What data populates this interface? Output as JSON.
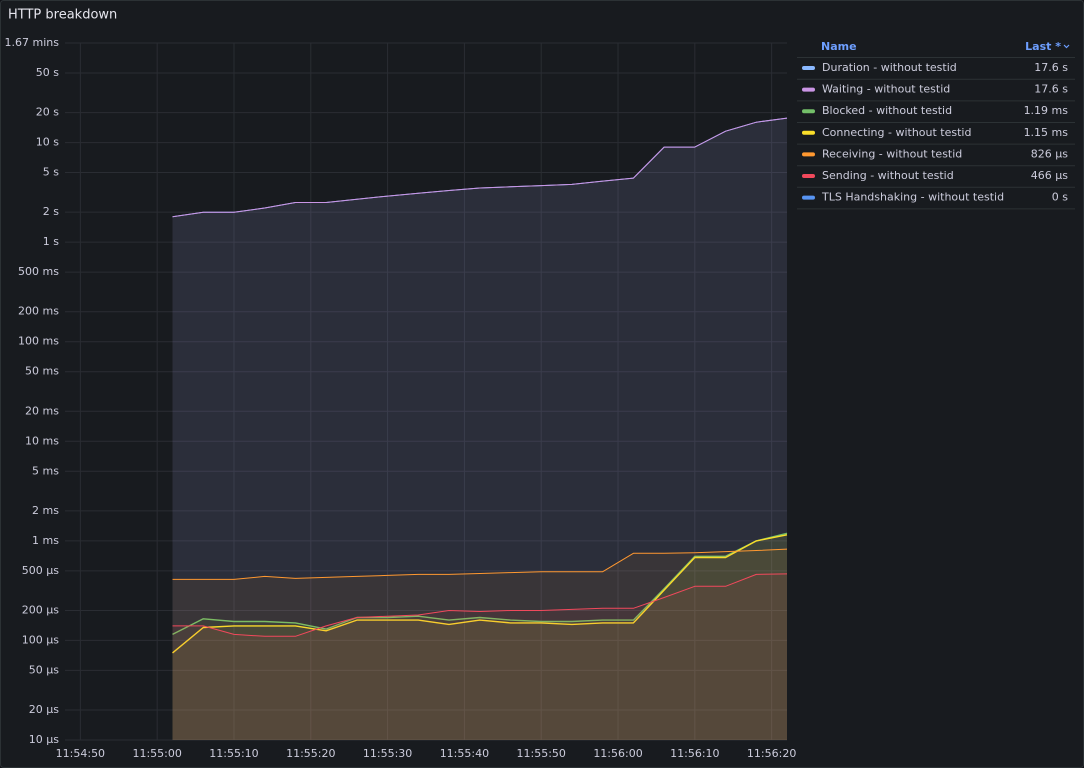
{
  "chart_data": {
    "type": "line",
    "title": "HTTP breakdown",
    "log_scale": true,
    "grid": true,
    "legend": "right",
    "legend_columns": [
      "Name",
      "Last *"
    ],
    "x": [
      "11:55:02",
      "11:55:06",
      "11:55:10",
      "11:55:14",
      "11:55:18",
      "11:55:22",
      "11:55:26",
      "11:55:30",
      "11:55:34",
      "11:55:38",
      "11:55:42",
      "11:55:46",
      "11:55:50",
      "11:55:54",
      "11:55:58",
      "11:56:02",
      "11:56:06",
      "11:56:10",
      "11:56:14",
      "11:56:18",
      "11:56:22"
    ],
    "xlim": [
      "11:54:48",
      "11:56:22"
    ],
    "xticks": [
      "11:54:50",
      "11:55:00",
      "11:55:10",
      "11:55:20",
      "11:55:30",
      "11:55:40",
      "11:55:50",
      "11:56:00",
      "11:56:10",
      "11:56:20"
    ],
    "ylim": [
      1e-05,
      100
    ],
    "yticks": [
      {
        "value": 100,
        "label": "1.67 mins"
      },
      {
        "value": 50,
        "label": "50 s"
      },
      {
        "value": 20,
        "label": "20 s"
      },
      {
        "value": 10,
        "label": "10 s"
      },
      {
        "value": 5,
        "label": "5 s"
      },
      {
        "value": 2,
        "label": "2 s"
      },
      {
        "value": 1,
        "label": "1 s"
      },
      {
        "value": 0.5,
        "label": "500 ms"
      },
      {
        "value": 0.2,
        "label": "200 ms"
      },
      {
        "value": 0.1,
        "label": "100 ms"
      },
      {
        "value": 0.05,
        "label": "50 ms"
      },
      {
        "value": 0.02,
        "label": "20 ms"
      },
      {
        "value": 0.01,
        "label": "10 ms"
      },
      {
        "value": 0.005,
        "label": "5 ms"
      },
      {
        "value": 0.002,
        "label": "2 ms"
      },
      {
        "value": 0.001,
        "label": "1 ms"
      },
      {
        "value": 0.0005,
        "label": "500 µs"
      },
      {
        "value": 0.0002,
        "label": "200 µs"
      },
      {
        "value": 0.0001,
        "label": "100 µs"
      },
      {
        "value": 5e-05,
        "label": "50 µs"
      },
      {
        "value": 2e-05,
        "label": "20 µs"
      },
      {
        "value": 1e-05,
        "label": "10 µs"
      }
    ],
    "series": [
      {
        "name": "Duration - without testid",
        "color": "#8ab8ff",
        "last_label": "17.6 s",
        "values": [
          1.8,
          2.0,
          2.0,
          2.2,
          2.5,
          2.5,
          2.7,
          2.9,
          3.1,
          3.3,
          3.5,
          3.6,
          3.7,
          3.8,
          4.1,
          4.4,
          9,
          9,
          13,
          16,
          17.6
        ]
      },
      {
        "name": "Waiting - without testid",
        "color": "#ca95e5",
        "last_label": "17.6 s",
        "values": [
          1.8,
          2.0,
          2.0,
          2.2,
          2.5,
          2.5,
          2.7,
          2.9,
          3.1,
          3.3,
          3.5,
          3.6,
          3.7,
          3.8,
          4.1,
          4.4,
          9,
          9,
          13,
          16,
          17.6
        ]
      },
      {
        "name": "Blocked - without testid",
        "color": "#73bf69",
        "last_label": "1.19 ms",
        "values": [
          0.000115,
          0.000165,
          0.000155,
          0.000155,
          0.00015,
          0.00013,
          0.00017,
          0.00017,
          0.000175,
          0.00016,
          0.00017,
          0.00016,
          0.000155,
          0.000155,
          0.00016,
          0.00016,
          0.00033,
          0.0007,
          0.0007,
          0.001,
          0.00119
        ]
      },
      {
        "name": "Connecting - without testid",
        "color": "#fade2a",
        "last_label": "1.15 ms",
        "values": [
          7.5e-05,
          0.000135,
          0.00014,
          0.00014,
          0.00014,
          0.000125,
          0.00016,
          0.00016,
          0.00016,
          0.000145,
          0.00016,
          0.00015,
          0.00015,
          0.000145,
          0.00015,
          0.00015,
          0.00032,
          0.00068,
          0.00068,
          0.001,
          0.00115
        ]
      },
      {
        "name": "Receiving - without testid",
        "color": "#ff9830",
        "last_label": "826 µs",
        "values": [
          0.00041,
          0.00041,
          0.00041,
          0.00044,
          0.00042,
          0.00043,
          0.00044,
          0.00045,
          0.00046,
          0.00046,
          0.00047,
          0.00048,
          0.00049,
          0.00049,
          0.00049,
          0.00075,
          0.00075,
          0.00076,
          0.00078,
          0.0008,
          0.000826
        ]
      },
      {
        "name": "Sending - without testid",
        "color": "#f2495c",
        "last_label": "466 µs",
        "values": [
          0.00014,
          0.00014,
          0.000115,
          0.00011,
          0.00011,
          0.00014,
          0.00017,
          0.000175,
          0.00018,
          0.0002,
          0.000195,
          0.0002,
          0.0002,
          0.000205,
          0.00021,
          0.00021,
          0.00027,
          0.00035,
          0.00035,
          0.00046,
          0.000466
        ]
      },
      {
        "name": "TLS Handshaking - without testid",
        "color": "#5794f2",
        "last_label": "0 s",
        "values": [
          0,
          0,
          0,
          0,
          0,
          0,
          0,
          0,
          0,
          0,
          0,
          0,
          0,
          0,
          0,
          0,
          0,
          0,
          0,
          0,
          0
        ]
      }
    ]
  }
}
